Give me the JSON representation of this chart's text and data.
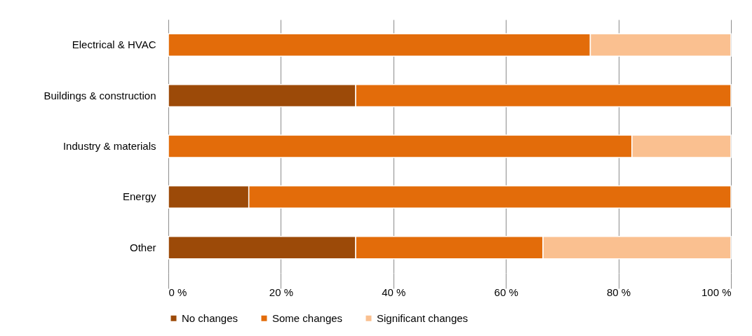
{
  "chart_data": {
    "type": "bar",
    "orientation": "horizontal",
    "stacked": true,
    "categories": [
      "Electrical & HVAC",
      "Buildings & construction",
      "Industry & materials",
      "Energy",
      "Other"
    ],
    "series": [
      {
        "name": "No changes",
        "color": "#9c4a08",
        "values": [
          0,
          33.3,
          0,
          14.3,
          33.3
        ]
      },
      {
        "name": "Some changes",
        "color": "#e36c0a",
        "values": [
          75,
          66.7,
          82.4,
          85.7,
          33.3
        ]
      },
      {
        "name": "Significant changes",
        "color": "#fac090",
        "values": [
          25,
          0,
          17.6,
          0,
          33.4
        ]
      }
    ],
    "xlim": [
      0,
      100
    ],
    "xticks": [
      {
        "value": 0,
        "label": "0 %"
      },
      {
        "value": 20,
        "label": "20 %"
      },
      {
        "value": 40,
        "label": "40 %"
      },
      {
        "value": 60,
        "label": "60 %"
      },
      {
        "value": 80,
        "label": "80 %"
      },
      {
        "value": 100,
        "label": "100 %"
      }
    ],
    "grid": "x",
    "legend": "bottom"
  }
}
